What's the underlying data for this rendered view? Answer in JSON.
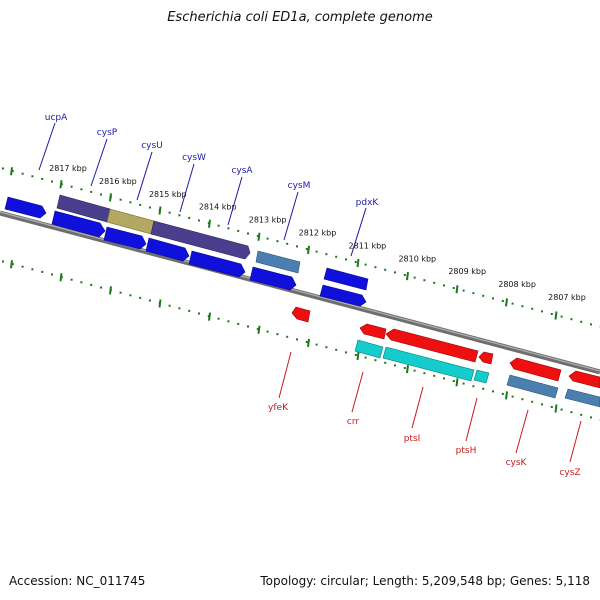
{
  "title": "Escherichia coli ED1a, complete genome",
  "footer": {
    "accession": "Accession: NC_011745",
    "summary": "Topology: circular; Length: 5,209,548 bp; Genes: 5,118"
  },
  "colors": {
    "cds_forward": "#1010dd",
    "cds_reverse": "#ee1010",
    "operon_purple": "#4a3f8c",
    "highlight_olive": "#b3a862",
    "steel_blue": "#4a7fb0",
    "cyan": "#14cccc",
    "backbone": "#808080",
    "tick_green": "#1a7a1a"
  },
  "scale_labels": [
    "2817 kbp",
    "2816 kbp",
    "2815 kbp",
    "2814 kbp",
    "2813 kbp",
    "2812 kbp",
    "2811 kbp",
    "2810 kbp",
    "2809 kbp",
    "2808 kbp",
    "2807 kbp"
  ],
  "forward_gene_labels": [
    "ucpA",
    "cysP",
    "cysU",
    "cysW",
    "cysA",
    "cysM",
    "pdxK"
  ],
  "reverse_gene_labels": [
    "yfeK",
    "crr",
    "ptsI",
    "ptsH",
    "cysK",
    "cysZ"
  ]
}
